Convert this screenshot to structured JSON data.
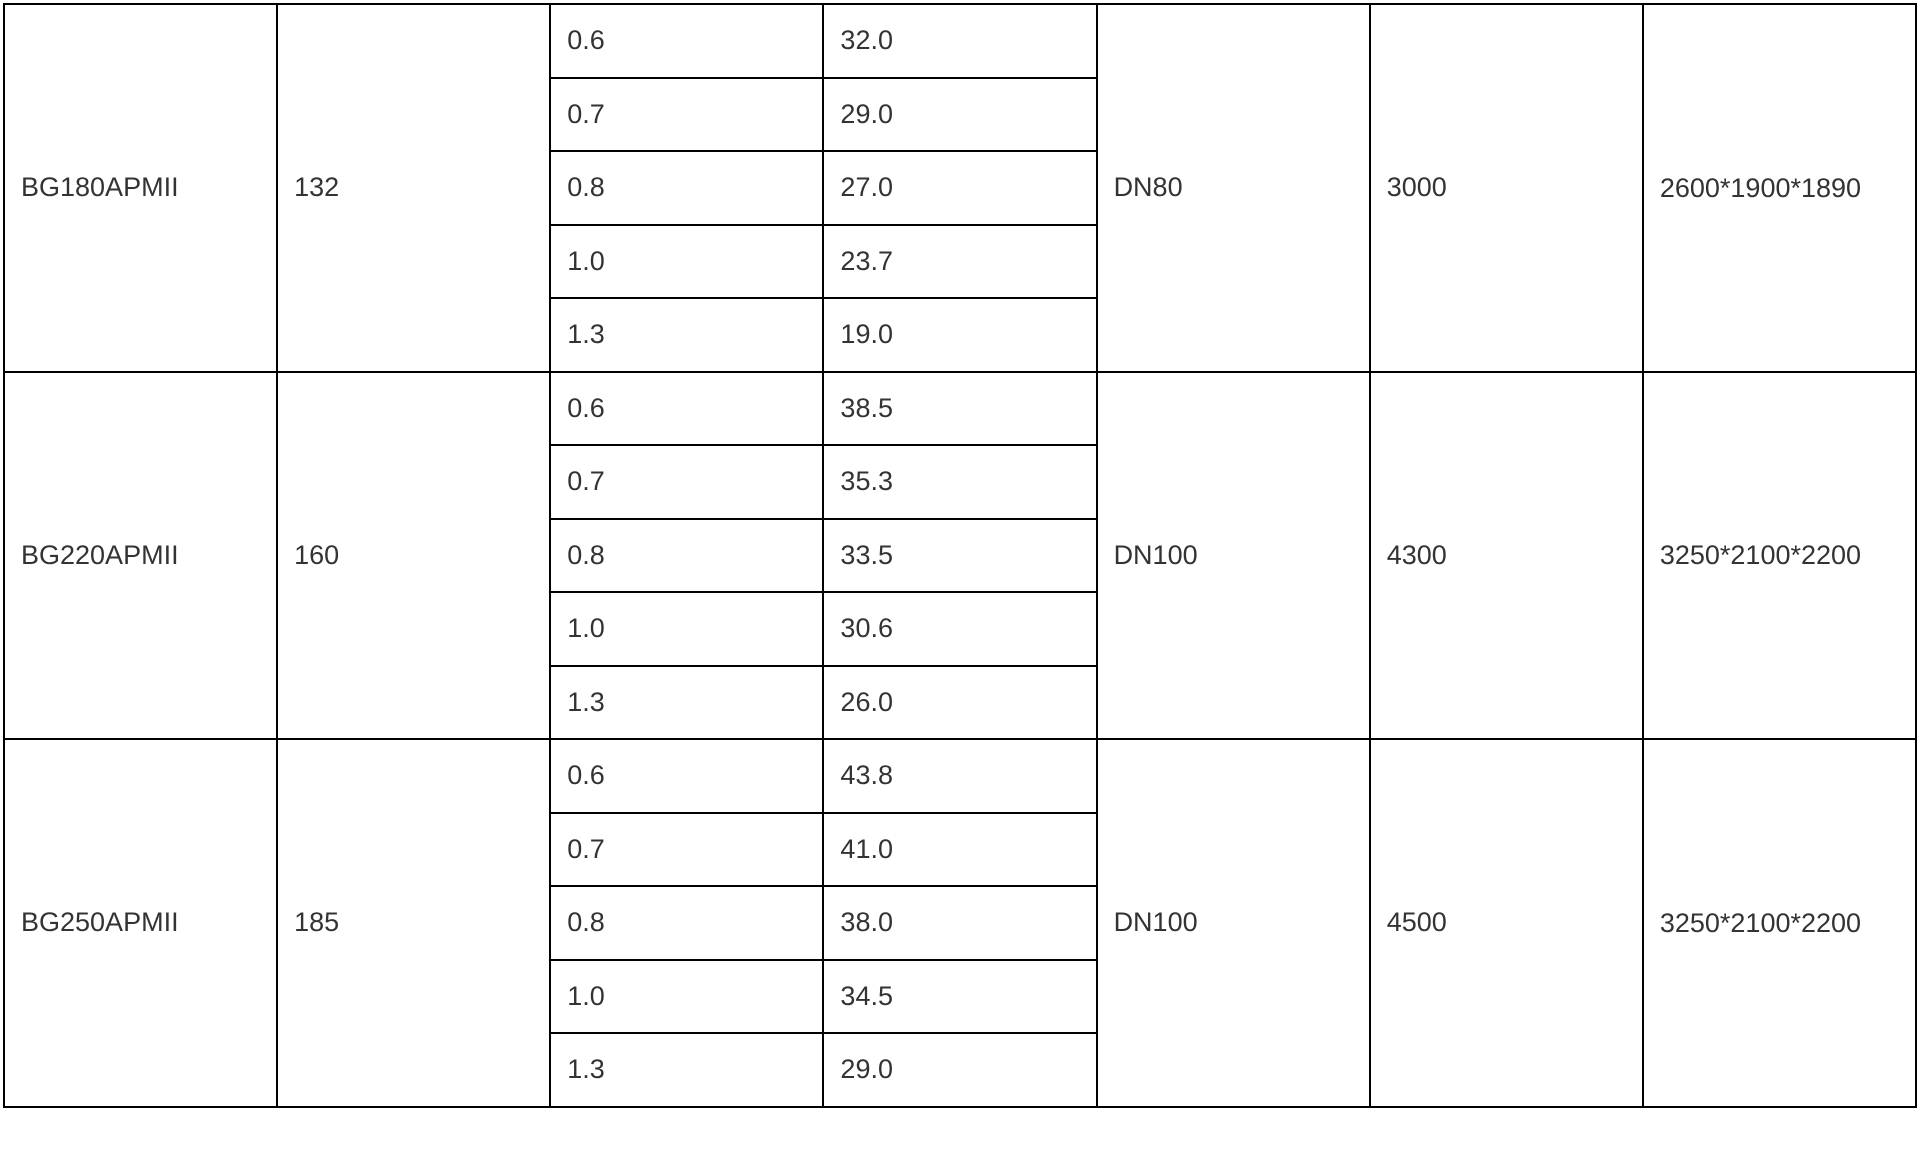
{
  "groups": [
    {
      "model": "BG180APMII",
      "power": "132",
      "rows": [
        [
          "0.6",
          "32.0"
        ],
        [
          "0.7",
          "29.0"
        ],
        [
          "0.8",
          "27.0"
        ],
        [
          "1.0",
          "23.7"
        ],
        [
          "1.3",
          "19.0"
        ]
      ],
      "outlet": "DN80",
      "weight": "3000",
      "dimensions": "2600*1900*1890"
    },
    {
      "model": "BG220APMII",
      "power": "160",
      "rows": [
        [
          "0.6",
          "38.5"
        ],
        [
          "0.7",
          "35.3"
        ],
        [
          "0.8",
          "33.5"
        ],
        [
          "1.0",
          "30.6"
        ],
        [
          "1.3",
          "26.0"
        ]
      ],
      "outlet": "DN100",
      "weight": "4300",
      "dimensions": "3250*2100*2200"
    },
    {
      "model": "BG250APMII",
      "power": "185",
      "rows": [
        [
          "0.6",
          "43.8"
        ],
        [
          "0.7",
          "41.0"
        ],
        [
          "0.8",
          "38.0"
        ],
        [
          "1.0",
          "34.5"
        ],
        [
          "1.3",
          "29.0"
        ]
      ],
      "outlet": "DN100",
      "weight": "4500",
      "dimensions": "3250*2100*2200"
    }
  ]
}
